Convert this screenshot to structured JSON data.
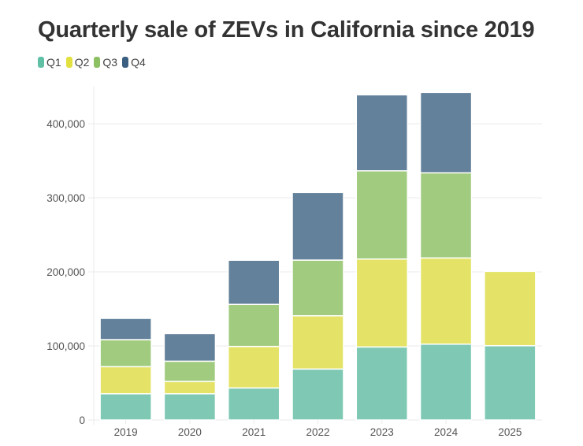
{
  "chart_data": {
    "type": "bar",
    "stacked": true,
    "title": "Quarterly sale of ZEVs in California since 2019",
    "xlabel": "",
    "ylabel": "",
    "categories": [
      "2019",
      "2020",
      "2021",
      "2022",
      "2023",
      "2024",
      "2025"
    ],
    "series": [
      {
        "name": "Q1",
        "color": "#5fc0a5",
        "bar_color": "#7fc9b4",
        "values": [
          35400,
          35400,
          43300,
          68800,
          98600,
          102400,
          100300
        ]
      },
      {
        "name": "Q2",
        "color": "#e1e03f",
        "bar_color": "#e4e368",
        "values": [
          36600,
          16700,
          56000,
          71900,
          118700,
          116400,
          100400
        ]
      },
      {
        "name": "Q3",
        "color": "#8cc063",
        "bar_color": "#a1cb7e",
        "values": [
          36500,
          27300,
          56800,
          75200,
          119100,
          114900,
          null
        ]
      },
      {
        "name": "Q4",
        "color": "#3b5f80",
        "bar_color": "#63819b",
        "values": [
          28700,
          37200,
          59600,
          91200,
          102600,
          108500,
          null
        ]
      }
    ],
    "yticks": [
      0,
      100000,
      200000,
      300000,
      400000
    ],
    "ytick_labels": [
      "0",
      "100,000",
      "200,000",
      "300,000",
      "400,000"
    ],
    "ylim": [
      0,
      450000
    ],
    "grid": true,
    "legend_position": "top-left"
  }
}
